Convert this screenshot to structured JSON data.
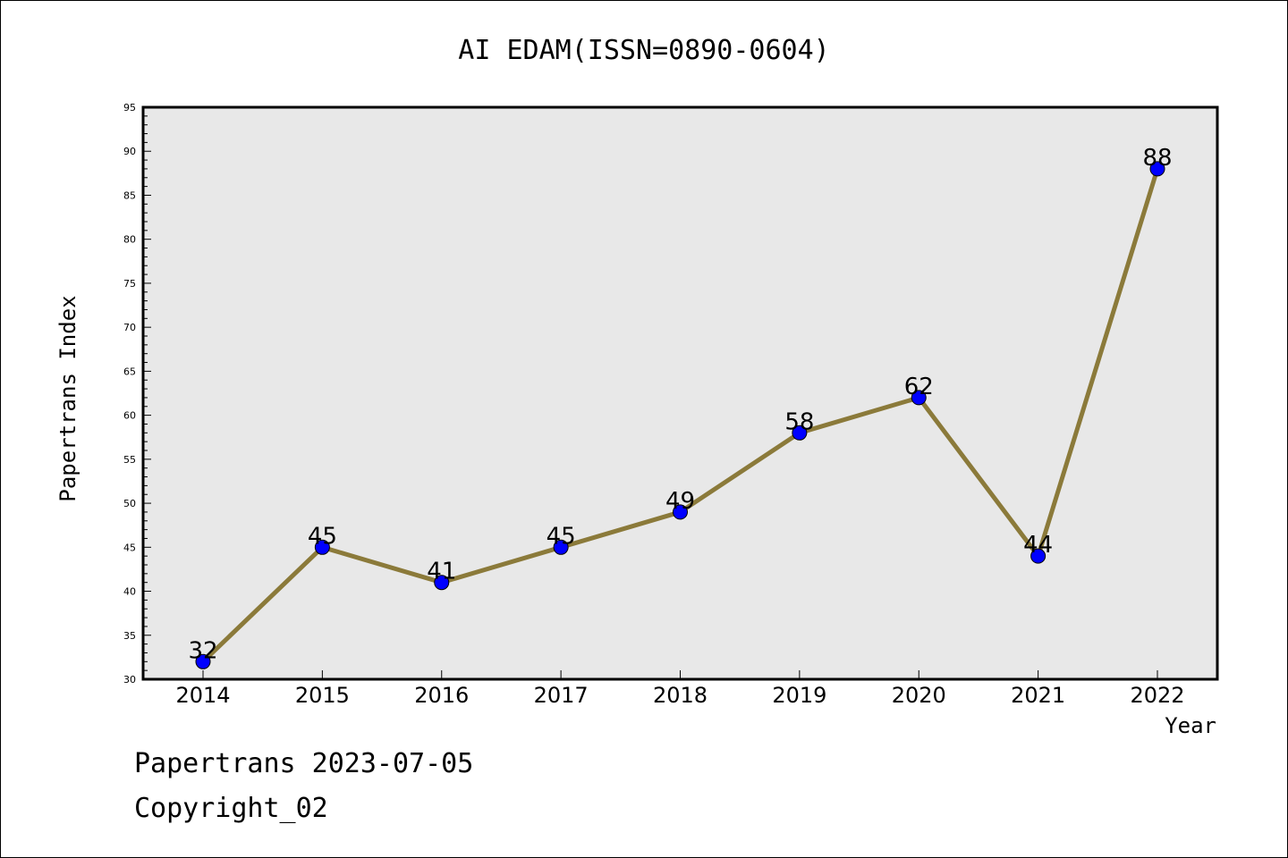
{
  "chart_data": {
    "type": "line",
    "title": "AI EDAM(ISSN=0890-0604)",
    "xlabel": "Year",
    "ylabel": "Papertrans Index",
    "categories": [
      "2014",
      "2015",
      "2016",
      "2017",
      "2018",
      "2019",
      "2020",
      "2021",
      "2022"
    ],
    "series": [
      {
        "values": [
          32,
          45,
          41,
          45,
          49,
          58,
          62,
          44,
          88
        ]
      }
    ],
    "ylim": [
      30,
      95
    ],
    "yticks": [
      "30",
      "35",
      "40",
      "45",
      "50",
      "55",
      "60",
      "65",
      "70",
      "75",
      "80",
      "85",
      "90",
      "95"
    ],
    "grid": false,
    "colors": {
      "line": "#8b7a3a",
      "marker": "#0000ff",
      "plot_bg": "#e8e8e8"
    }
  },
  "footer": {
    "line1": "Papertrans 2023-07-05",
    "line2": "Copyright_02"
  }
}
